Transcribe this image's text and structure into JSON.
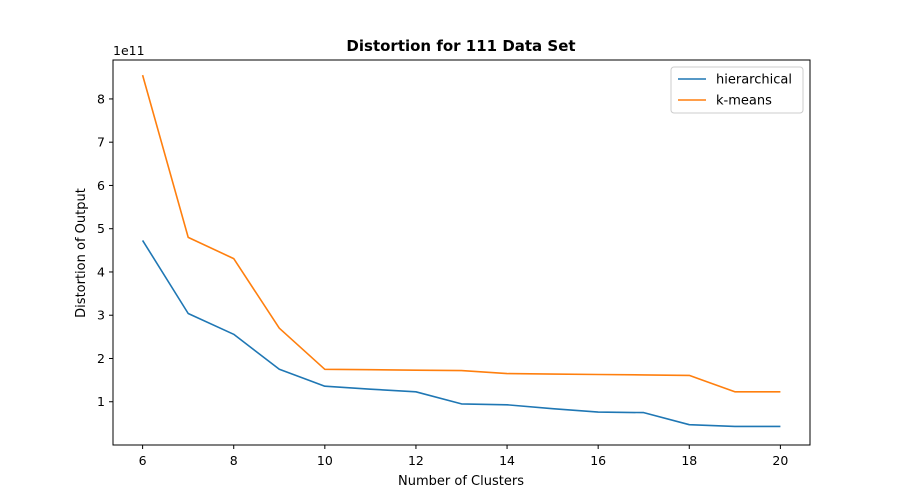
{
  "chart_data": {
    "type": "line",
    "title": "Distortion for 111 Data Set",
    "xlabel": "Number of Clusters",
    "ylabel": "Distortion of Output",
    "y_offset_label": "1e11",
    "xlim": [
      5.35,
      20.65
    ],
    "ylim": [
      0.0,
      0.89
    ],
    "xticks": [
      6,
      8,
      10,
      12,
      14,
      16,
      18,
      20
    ],
    "yticks": [
      1,
      2,
      3,
      4,
      5,
      6,
      7,
      8
    ],
    "grid": false,
    "legend_position": "top-right",
    "x": [
      6,
      7,
      8,
      9,
      10,
      11,
      12,
      13,
      14,
      15,
      16,
      17,
      18,
      19,
      20
    ],
    "series": [
      {
        "name": "hierarchical",
        "color": "#1f77b4",
        "values": [
          0.473,
          0.304,
          0.256,
          0.175,
          0.136,
          0.129,
          0.123,
          0.095,
          0.093,
          0.084,
          0.076,
          0.075,
          0.047,
          0.043,
          0.043
        ]
      },
      {
        "name": "k-means",
        "color": "#ff7f0e",
        "values": [
          0.855,
          0.48,
          0.431,
          0.27,
          0.175,
          0.174,
          0.173,
          0.172,
          0.165,
          0.164,
          0.163,
          0.162,
          0.161,
          0.123,
          0.123
        ]
      }
    ]
  }
}
